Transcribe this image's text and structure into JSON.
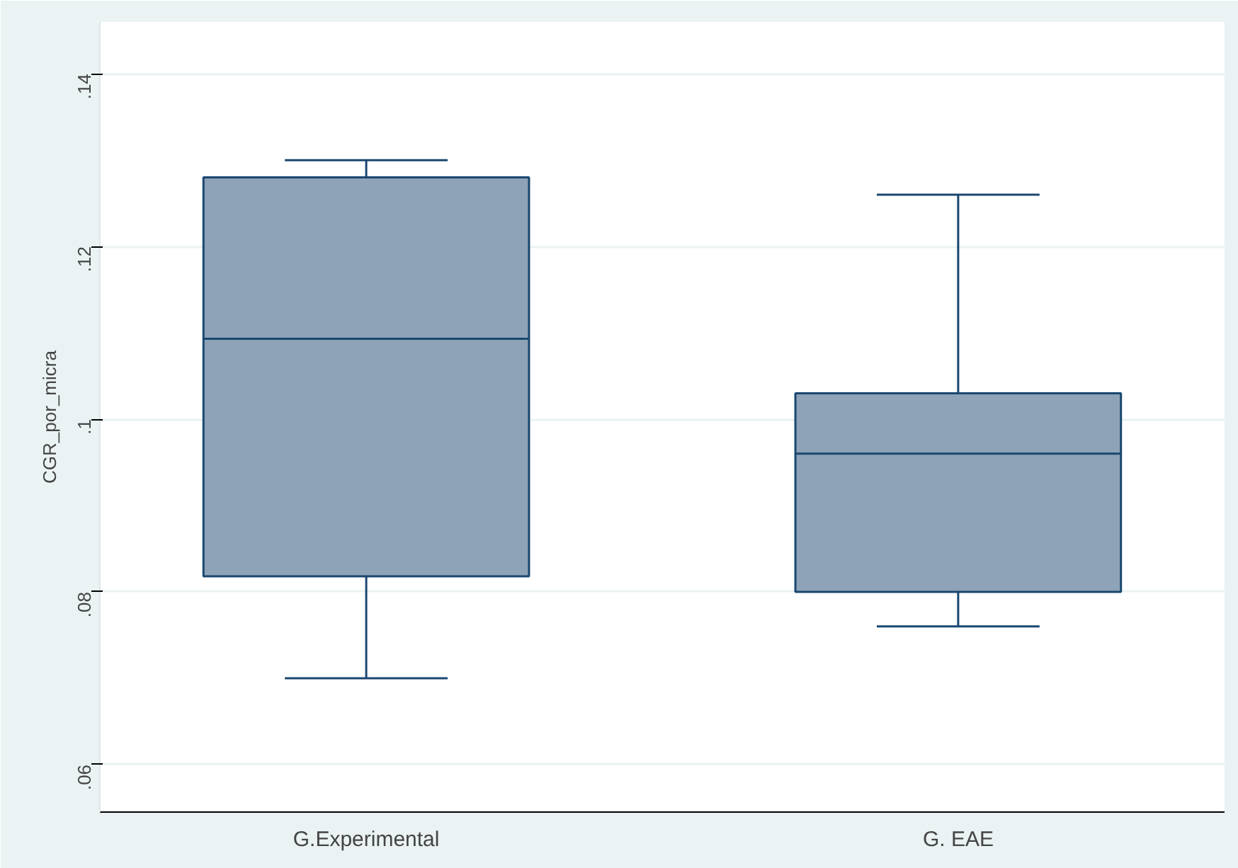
{
  "chart_data": {
    "type": "box",
    "ylabel": "CGR_por_micra",
    "categories": [
      "G.Experimental",
      "G. EAE"
    ],
    "boxes": [
      {
        "low": 0.07,
        "q1": 0.0818,
        "median": 0.1093,
        "q3": 0.128,
        "high": 0.13
      },
      {
        "low": 0.076,
        "q1": 0.08,
        "median": 0.096,
        "q3": 0.103,
        "high": 0.126
      }
    ],
    "color": "#8ea3b7",
    "ylim": [
      0.0545,
      0.146
    ],
    "yticks": [
      {
        "value": 0.06,
        "label": ".06"
      },
      {
        "value": 0.08,
        "label": ".08"
      },
      {
        "value": 0.1,
        "label": ".1"
      },
      {
        "value": 0.12,
        "label": ".12"
      },
      {
        "value": 0.14,
        "label": ".14"
      }
    ],
    "grid": "y"
  }
}
